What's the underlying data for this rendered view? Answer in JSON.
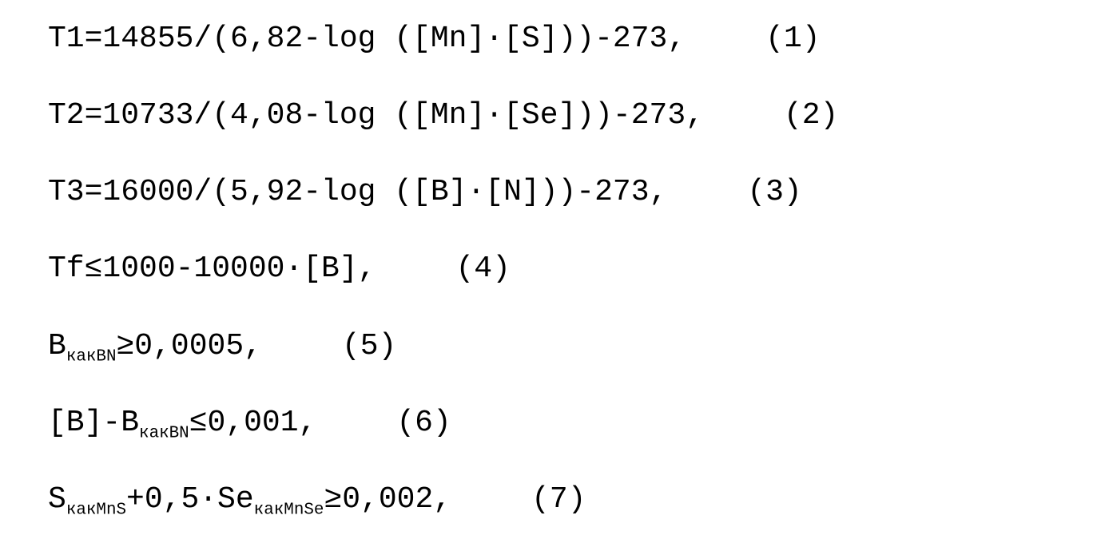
{
  "font": {
    "family": "Courier New, monospace",
    "size_pt": 28,
    "color": "#000000"
  },
  "background_color": "#ffffff",
  "equations": [
    {
      "parts": [
        {
          "t": "T1=14855/(6,82-log ([Mn]·[S]))-273,"
        }
      ],
      "num": "(1)"
    },
    {
      "parts": [
        {
          "t": "T2=10733/(4,08-log ([Mn]·[Se]))-273,"
        }
      ],
      "num": "(2)"
    },
    {
      "parts": [
        {
          "t": "T3=16000/(5,92-log ([B]·[N]))-273,"
        }
      ],
      "num": "(3)"
    },
    {
      "parts": [
        {
          "t": "Tf≤1000-10000·[B],"
        }
      ],
      "num": "(4)"
    },
    {
      "parts": [
        {
          "t": "B"
        },
        {
          "t": "какBN",
          "sub": true
        },
        {
          "t": "≥0,0005,"
        }
      ],
      "num": "(5)"
    },
    {
      "parts": [
        {
          "t": "[B]-B"
        },
        {
          "t": "какBN",
          "sub": true
        },
        {
          "t": "≤0,001,"
        }
      ],
      "num": "(6)"
    },
    {
      "parts": [
        {
          "t": "S"
        },
        {
          "t": "какMnS",
          "sub": true
        },
        {
          "t": "+0,5·Se"
        },
        {
          "t": "какMnSe",
          "sub": true
        },
        {
          "t": "≥0,002,"
        }
      ],
      "num": "(7)"
    }
  ]
}
